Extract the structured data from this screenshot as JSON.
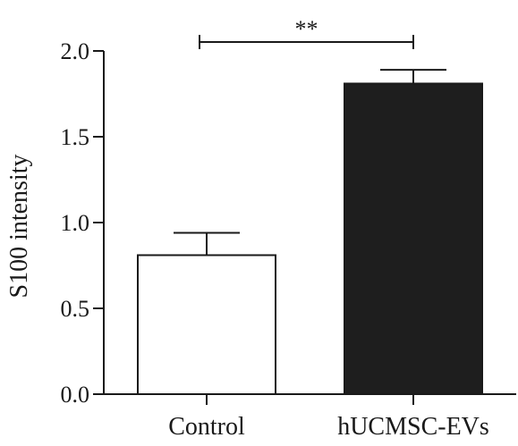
{
  "chart_data": {
    "type": "bar",
    "categories": [
      "Control",
      "hUCMSC-EVs"
    ],
    "values": [
      0.81,
      1.81
    ],
    "error": [
      0.13,
      0.08
    ],
    "bar_colors": [
      "#ffffff",
      "#1e1e1e"
    ],
    "xlabel": "",
    "ylabel": "S100 intensity",
    "ylim": [
      0,
      2.0
    ],
    "yticks": [
      "0.0",
      "0.5",
      "1.0",
      "1.5",
      "2.0"
    ],
    "ytick_values": [
      0,
      0.5,
      1.0,
      1.5,
      2.0
    ],
    "significance": {
      "label": "**",
      "between": [
        0,
        1
      ],
      "level": 2.0
    },
    "grid": false,
    "legend": "none"
  }
}
